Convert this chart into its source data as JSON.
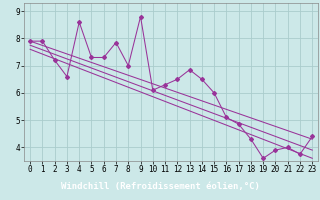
{
  "xlabel": "Windchill (Refroidissement éolien,°C)",
  "background_color": "#cce8e8",
  "grid_color": "#aacccc",
  "line_color": "#993399",
  "x_hours": [
    0,
    1,
    2,
    3,
    4,
    5,
    6,
    7,
    8,
    9,
    10,
    11,
    12,
    13,
    14,
    15,
    16,
    17,
    18,
    19,
    20,
    21,
    22,
    23
  ],
  "y_main": [
    7.9,
    7.9,
    7.2,
    6.6,
    8.6,
    7.3,
    7.3,
    7.85,
    7.0,
    8.8,
    6.1,
    6.3,
    6.5,
    6.85,
    6.5,
    6.0,
    5.1,
    4.85,
    4.3,
    3.6,
    3.9,
    4.0,
    3.75,
    4.4
  ],
  "y_reg1_start": 7.9,
  "y_reg1_end": 4.3,
  "y_reg2_start": 7.75,
  "y_reg2_end": 3.9,
  "y_reg3_start": 7.6,
  "y_reg3_end": 3.6,
  "ylim": [
    3.5,
    9.3
  ],
  "yticks": [
    4,
    5,
    6,
    7,
    8,
    9
  ],
  "xlim": [
    -0.5,
    23.5
  ],
  "xticks": [
    0,
    1,
    2,
    3,
    4,
    5,
    6,
    7,
    8,
    9,
    10,
    11,
    12,
    13,
    14,
    15,
    16,
    17,
    18,
    19,
    20,
    21,
    22,
    23
  ],
  "tick_labelsize": 5.5,
  "xlabel_fontsize": 6.5,
  "marker": "D",
  "markersize": 2.0,
  "linewidth": 0.75,
  "xlabel_bg": "#660066",
  "xlabel_fg": "#ffffff",
  "n_points": 24
}
